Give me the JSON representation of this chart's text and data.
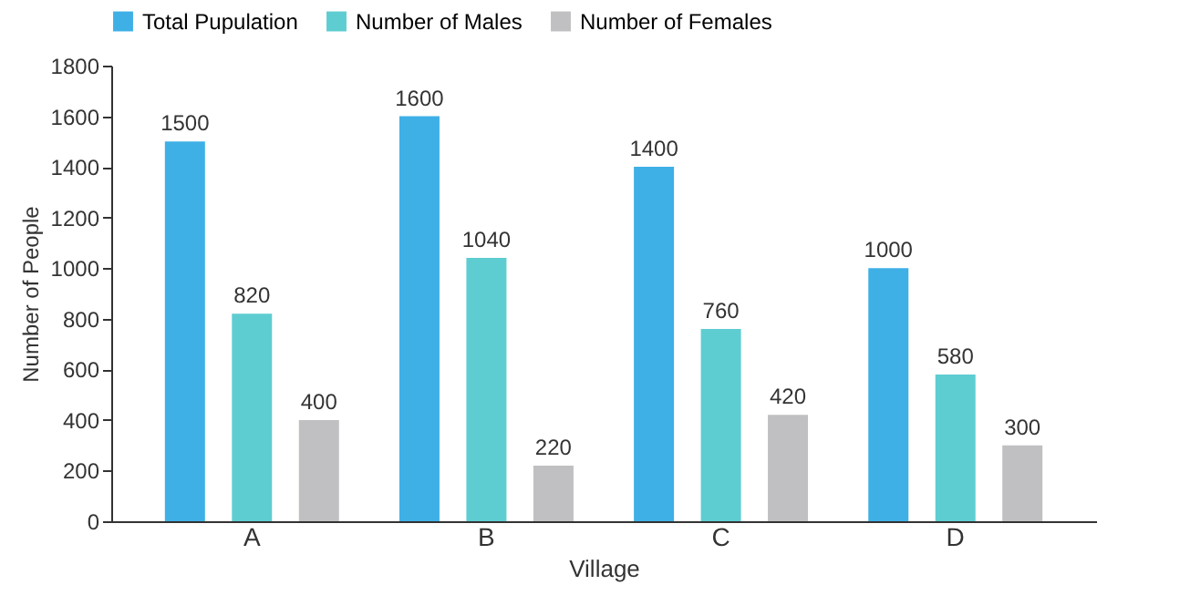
{
  "chart_data": {
    "type": "bar",
    "xlabel": "Village",
    "ylabel": "Number of People",
    "categories": [
      "A",
      "B",
      "C",
      "D"
    ],
    "series": [
      {
        "name": "Total Pupulation",
        "color": "#3fb0e6",
        "values": [
          1500,
          1600,
          1400,
          1000
        ]
      },
      {
        "name": "Number of Males",
        "color": "#5ecdd1",
        "values": [
          820,
          1040,
          760,
          580
        ]
      },
      {
        "name": "Number of Females",
        "color": "#c0c0c2",
        "values": [
          400,
          220,
          420,
          300
        ]
      }
    ],
    "ylim": [
      0,
      1800
    ],
    "yticks": [
      0,
      200,
      400,
      600,
      800,
      1000,
      1200,
      1400,
      1600,
      1800
    ],
    "data_labels": true,
    "grid": false,
    "legend": "top"
  }
}
